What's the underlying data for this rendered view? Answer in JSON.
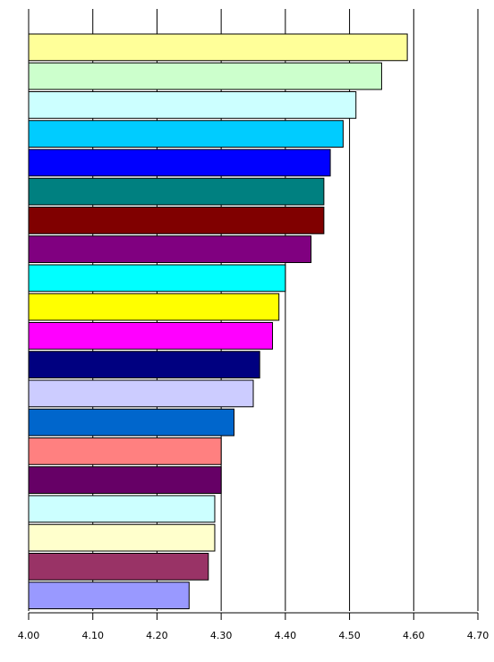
{
  "chart_data": {
    "type": "hbar",
    "values": [
      4.59,
      4.55,
      4.51,
      4.49,
      4.47,
      4.46,
      4.46,
      4.44,
      4.4,
      4.39,
      4.38,
      4.36,
      4.35,
      4.32,
      4.3,
      4.3,
      4.29,
      4.29,
      4.28,
      4.25
    ],
    "colors": [
      "#ffff99",
      "#ccffcc",
      "#ccffff",
      "#00ccff",
      "#0000ff",
      "#008080",
      "#800000",
      "#800080",
      "#00ffff",
      "#ffff00",
      "#ff00ff",
      "#000080",
      "#ccccff",
      "#0066cc",
      "#ff8080",
      "#660066",
      "#ccffff",
      "#ffffcc",
      "#993366",
      "#9999ff"
    ],
    "xlim": [
      4.0,
      4.7
    ],
    "xticks": [
      {
        "value": 4.0,
        "label": "4.00"
      },
      {
        "value": 4.1,
        "label": "4.10"
      },
      {
        "value": 4.2,
        "label": "4.20"
      },
      {
        "value": 4.3,
        "label": "4.30"
      },
      {
        "value": 4.4,
        "label": "4.40"
      },
      {
        "value": 4.5,
        "label": "4.50"
      },
      {
        "value": 4.6,
        "label": "4.60"
      },
      {
        "value": 4.7,
        "label": "4.70"
      }
    ],
    "grid": true
  }
}
